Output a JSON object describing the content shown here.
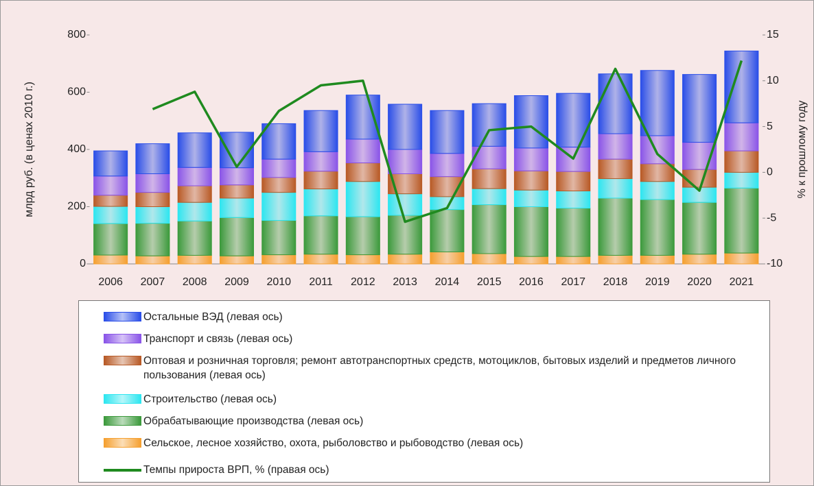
{
  "chart_data": {
    "type": "bar",
    "stacked": true,
    "y_label": "млрд руб. (в ценах 2010 г.)",
    "y2_label": "% к прошлому году",
    "categories": [
      "2006",
      "2007",
      "2008",
      "2009",
      "2010",
      "2011",
      "2012",
      "2013",
      "2014",
      "2015",
      "2016",
      "2017",
      "2018",
      "2019",
      "2020",
      "2021"
    ],
    "ylim": [
      0,
      800
    ],
    "yticks": [
      0,
      200,
      400,
      600,
      800
    ],
    "y2lim": [
      -10,
      15
    ],
    "y2ticks": [
      -10,
      -5,
      0,
      5,
      10,
      15
    ],
    "grid": false,
    "series": [
      {
        "name": "Сельское, лесное хозяйство, охота, рыболовство и рыбоводство (левая ось)",
        "color": "#f5a030",
        "values": [
          31,
          28,
          30,
          28,
          32,
          34,
          32,
          34,
          42,
          36,
          26,
          26,
          30,
          30,
          34,
          38
        ]
      },
      {
        "name": "Обрабатывающие производства (левая ось)",
        "color": "#3c9a3c",
        "values": [
          110,
          114,
          120,
          134,
          120,
          134,
          133,
          136,
          148,
          171,
          174,
          169,
          200,
          195,
          181,
          227
        ]
      },
      {
        "name": "Строительство (левая ось)",
        "color": "#2ee6f0",
        "values": [
          60,
          58,
          65,
          68,
          98,
          94,
          123,
          75,
          45,
          56,
          58,
          60,
          68,
          63,
          53,
          55
        ]
      },
      {
        "name": "Оптовая и розничная торговля; ремонт автотранспортных средств, мотоциклов, бытовых изделий и предметов личного пользования (левая ось)",
        "color": "#b85a26",
        "values": [
          39,
          50,
          58,
          46,
          52,
          62,
          65,
          70,
          70,
          69,
          67,
          68,
          68,
          62,
          62,
          75
        ]
      },
      {
        "name": "Транспорт и связь (левая ось)",
        "color": "#8a55e8",
        "values": [
          67,
          65,
          64,
          60,
          64,
          68,
          83,
          85,
          81,
          79,
          80,
          85,
          89,
          98,
          95,
          98
        ]
      },
      {
        "name": "Остальные ВЭД (левая ось)",
        "color": "#2a4ee8",
        "values": [
          88,
          105,
          121,
          124,
          124,
          144,
          154,
          158,
          150,
          149,
          183,
          188,
          209,
          228,
          237,
          251
        ]
      },
      {
        "name": "Темпы прироста ВРП, % (правая ось)",
        "color": "#1f8a1f",
        "type": "line",
        "axis": "y2",
        "values": [
          null,
          6.9,
          8.8,
          0.6,
          6.7,
          9.5,
          10.0,
          -5.4,
          -3.9,
          4.6,
          5.0,
          1.5,
          11.3,
          2.0,
          -2.0,
          12.2
        ]
      }
    ]
  }
}
